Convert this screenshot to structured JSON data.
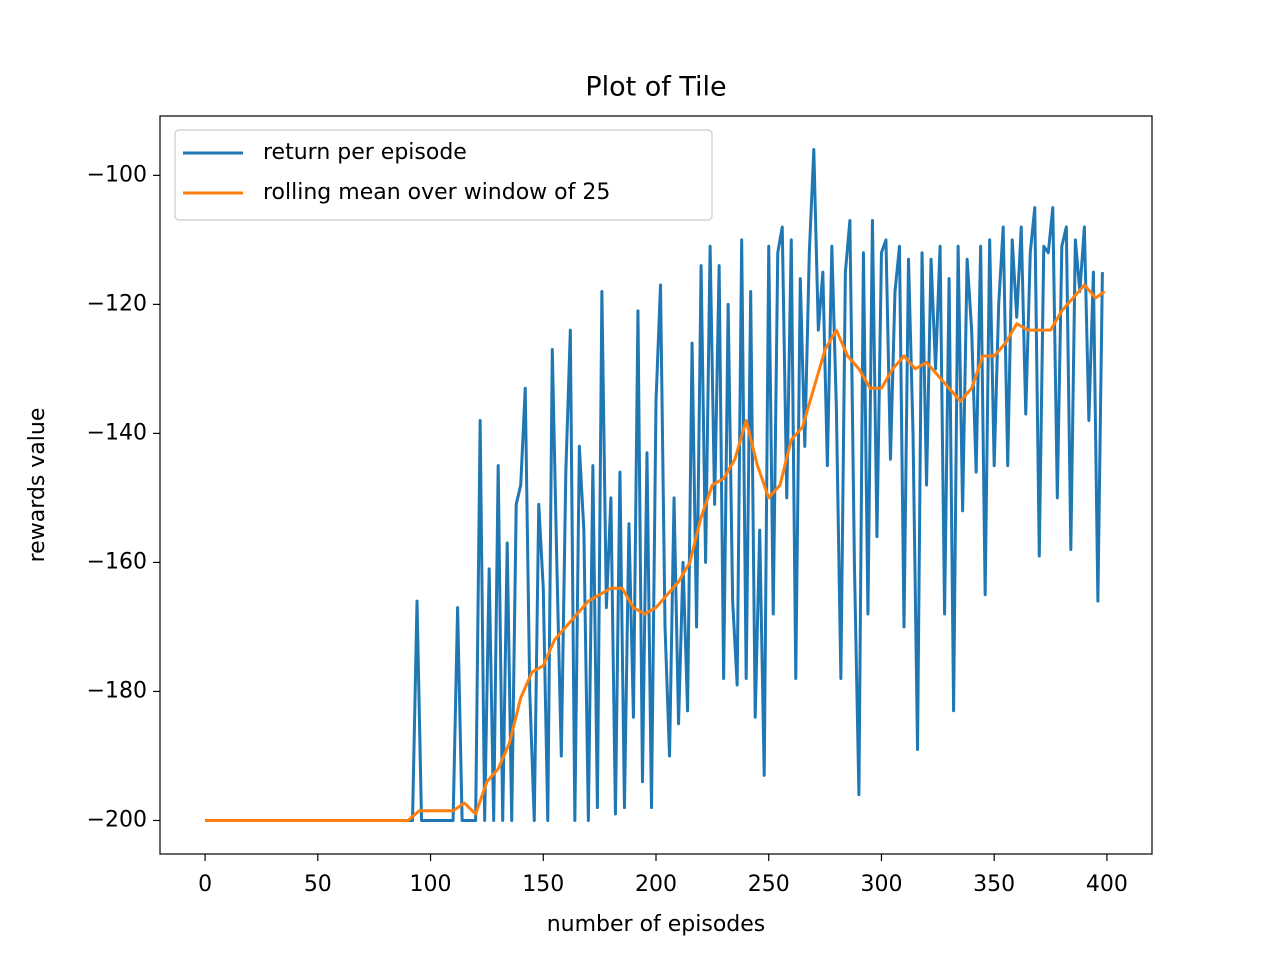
{
  "chart_data": {
    "type": "line",
    "title": "Plot of Tile",
    "xlabel": "number of episodes",
    "ylabel": "rewards value",
    "xlim": [
      -20,
      420
    ],
    "ylim": [
      -205.2,
      -90.8
    ],
    "xticks": [
      0,
      50,
      100,
      150,
      200,
      250,
      300,
      350,
      400
    ],
    "yticks": [
      {
        "value": -200,
        "label": "−200"
      },
      {
        "value": -180,
        "label": "−180"
      },
      {
        "value": -160,
        "label": "−160"
      },
      {
        "value": -140,
        "label": "−140"
      },
      {
        "value": -120,
        "label": "−120"
      },
      {
        "value": -100,
        "label": "−100"
      }
    ],
    "grid": false,
    "legend": "upper left",
    "series": [
      {
        "name": "return per episode",
        "color": "#1f77b4",
        "x": [
          0,
          2,
          4,
          6,
          8,
          10,
          12,
          14,
          16,
          18,
          20,
          22,
          24,
          26,
          28,
          30,
          32,
          34,
          36,
          38,
          40,
          42,
          44,
          46,
          48,
          50,
          52,
          54,
          56,
          58,
          60,
          62,
          64,
          66,
          68,
          70,
          72,
          74,
          76,
          78,
          80,
          82,
          84,
          86,
          88,
          90,
          92,
          94,
          96,
          98,
          100,
          102,
          104,
          106,
          108,
          110,
          112,
          114,
          116,
          118,
          120,
          122,
          124,
          126,
          128,
          130,
          132,
          134,
          136,
          138,
          140,
          142,
          144,
          146,
          148,
          150,
          152,
          154,
          156,
          158,
          160,
          162,
          164,
          166,
          168,
          170,
          172,
          174,
          176,
          178,
          180,
          182,
          184,
          186,
          188,
          190,
          192,
          194,
          196,
          198,
          200,
          202,
          204,
          206,
          208,
          210,
          212,
          214,
          216,
          218,
          220,
          222,
          224,
          226,
          228,
          230,
          232,
          234,
          236,
          238,
          240,
          242,
          244,
          246,
          248,
          250,
          252,
          254,
          256,
          258,
          260,
          262,
          264,
          266,
          268,
          270,
          272,
          274,
          276,
          278,
          280,
          282,
          284,
          286,
          288,
          290,
          292,
          294,
          296,
          298,
          300,
          302,
          304,
          306,
          308,
          310,
          312,
          314,
          316,
          318,
          320,
          322,
          324,
          326,
          328,
          330,
          332,
          334,
          336,
          338,
          340,
          342,
          344,
          346,
          348,
          350,
          352,
          354,
          356,
          358,
          360,
          362,
          364,
          366,
          368,
          370,
          372,
          374,
          376,
          378,
          380,
          382,
          384,
          386,
          388,
          390,
          392,
          394,
          396,
          398
        ],
        "values": [
          -200,
          -200,
          -200,
          -200,
          -200,
          -200,
          -200,
          -200,
          -200,
          -200,
          -200,
          -200,
          -200,
          -200,
          -200,
          -200,
          -200,
          -200,
          -200,
          -200,
          -200,
          -200,
          -200,
          -200,
          -200,
          -200,
          -200,
          -200,
          -200,
          -200,
          -200,
          -200,
          -200,
          -200,
          -200,
          -200,
          -200,
          -200,
          -200,
          -200,
          -200,
          -200,
          -200,
          -200,
          -200,
          -200,
          -200,
          -166,
          -200,
          -200,
          -200,
          -200,
          -200,
          -200,
          -200,
          -200,
          -167,
          -200,
          -200,
          -200,
          -200,
          -138,
          -200,
          -161,
          -200,
          -145,
          -200,
          -157,
          -200,
          -151,
          -148,
          -133,
          -180,
          -200,
          -151,
          -164,
          -200,
          -127,
          -160,
          -190,
          -146,
          -124,
          -200,
          -142,
          -155,
          -200,
          -145,
          -198,
          -118,
          -167,
          -150,
          -199,
          -146,
          -198,
          -154,
          -184,
          -121,
          -194,
          -143,
          -198,
          -135,
          -117,
          -170,
          -190,
          -150,
          -185,
          -160,
          -183,
          -126,
          -170,
          -114,
          -160,
          -111,
          -151,
          -114,
          -178,
          -120,
          -166,
          -179,
          -110,
          -178,
          -118,
          -184,
          -155,
          -193,
          -111,
          -168,
          -112,
          -108,
          -150,
          -110,
          -178,
          -116,
          -142,
          -112,
          -96,
          -124,
          -115,
          -145,
          -111,
          -136,
          -178,
          -115,
          -107,
          -160,
          -196,
          -112,
          -168,
          -107,
          -156,
          -112,
          -110,
          -144,
          -118,
          -111,
          -170,
          -113,
          -140,
          -189,
          -112,
          -148,
          -113,
          -130,
          -111,
          -168,
          -116,
          -183,
          -111,
          -152,
          -113,
          -124,
          -146,
          -111,
          -165,
          -110,
          -145,
          -120,
          -108,
          -145,
          -110,
          -122,
          -108,
          -137,
          -112,
          -105,
          -159,
          -111,
          -112,
          -105,
          -150,
          -111,
          -108,
          -158,
          -110,
          -118,
          -108,
          -138,
          -115,
          -166,
          -115
        ]
      },
      {
        "name": "rolling mean over window of 25",
        "color": "#ff7f0e",
        "x": [
          0,
          5,
          10,
          15,
          20,
          25,
          30,
          35,
          40,
          45,
          50,
          55,
          60,
          65,
          70,
          75,
          80,
          85,
          90,
          95,
          100,
          105,
          110,
          115,
          120,
          125,
          130,
          135,
          140,
          145,
          150,
          155,
          160,
          165,
          170,
          175,
          180,
          185,
          190,
          195,
          200,
          205,
          210,
          215,
          220,
          225,
          230,
          235,
          240,
          245,
          250,
          255,
          260,
          265,
          270,
          275,
          280,
          285,
          290,
          295,
          300,
          305,
          310,
          315,
          320,
          325,
          330,
          335,
          340,
          345,
          350,
          355,
          360,
          365,
          370,
          375,
          380,
          385,
          390,
          395,
          399
        ],
        "values": [
          -200,
          -200,
          -200,
          -200,
          -200,
          -200,
          -200,
          -200,
          -200,
          -200,
          -200,
          -200,
          -200,
          -200,
          -200,
          -200,
          -200,
          -200,
          -200,
          -198.5,
          -198.5,
          -198.5,
          -198.5,
          -197.3,
          -199,
          -194,
          -192,
          -188,
          -181,
          -177,
          -176,
          -172,
          -170,
          -168,
          -166,
          -165,
          -164,
          -164,
          -167,
          -168,
          -167,
          -165,
          -163,
          -160,
          -153,
          -148,
          -147,
          -144,
          -138,
          -145,
          -150,
          -148,
          -141,
          -139,
          -133,
          -127,
          -124,
          -128,
          -130,
          -133,
          -133,
          -130,
          -128,
          -130,
          -129,
          -131,
          -133,
          -135,
          -133,
          -128,
          -128,
          -126,
          -123,
          -124,
          -124,
          -124,
          -121,
          -119,
          -117,
          -119,
          -118
        ]
      }
    ]
  }
}
